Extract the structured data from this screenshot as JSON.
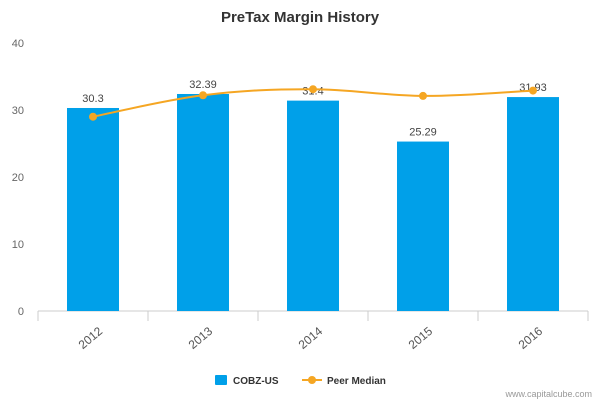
{
  "chart_data": {
    "type": "bar",
    "title": "PreTax Margin History",
    "categories": [
      "2012",
      "2013",
      "2014",
      "2015",
      "2016"
    ],
    "series": [
      {
        "name": "COBZ-US",
        "type": "bar",
        "values": [
          30.3,
          32.39,
          31.4,
          25.29,
          31.93
        ],
        "labels": [
          "30.3",
          "32.39",
          "31.4",
          "25.29",
          "31.93"
        ],
        "color": "#00a0e9"
      },
      {
        "name": "Peer Median",
        "type": "line",
        "values": [
          29.0,
          32.2,
          33.1,
          32.1,
          32.9
        ],
        "color": "#f5a623"
      }
    ],
    "ylim": [
      0,
      40
    ],
    "yticks": [
      "0",
      "10",
      "20",
      "30",
      "40"
    ],
    "grid": false,
    "legend_position": "bottom-center"
  },
  "credit": "www.capitalcube.com"
}
